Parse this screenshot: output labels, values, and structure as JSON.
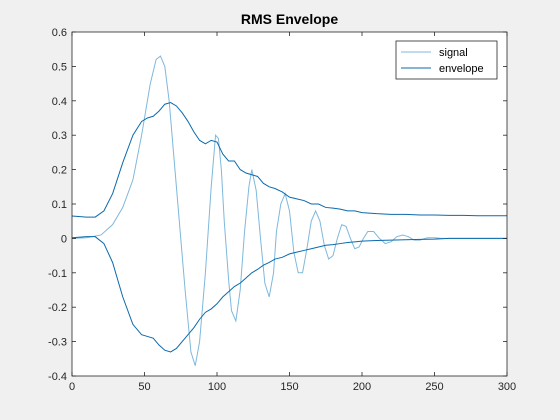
{
  "chart_data": {
    "type": "line",
    "title": "RMS Envelope",
    "xlabel": "",
    "ylabel": "",
    "xlim": [
      0,
      300
    ],
    "ylim": [
      -0.4,
      0.6
    ],
    "xticks": [
      0,
      50,
      100,
      150,
      200,
      250,
      300
    ],
    "yticks": [
      -0.4,
      -0.3,
      -0.2,
      -0.1,
      0,
      0.1,
      0.2,
      0.3,
      0.4,
      0.5,
      0.6
    ],
    "grid": false,
    "legend_position": "top-right",
    "series": [
      {
        "name": "signal",
        "color": "#7eb8dc",
        "x": [
          0,
          10,
          20,
          28,
          35,
          42,
          48,
          54,
          58,
          61,
          64,
          67,
          70,
          74,
          78,
          82,
          85,
          88,
          92,
          96,
          99,
          101,
          103,
          105,
          108,
          110,
          113,
          116,
          119,
          122,
          124,
          127,
          130,
          133,
          136,
          139,
          141,
          144,
          147,
          150,
          153,
          156,
          159,
          162,
          165,
          168,
          171,
          174,
          177,
          180,
          183,
          186,
          189,
          192,
          195,
          198,
          201,
          204,
          208,
          212,
          216,
          220,
          224,
          228,
          232,
          236,
          240,
          245,
          250,
          255,
          260,
          270,
          280,
          290,
          300
        ],
        "values": [
          0,
          0.002,
          0.01,
          0.04,
          0.09,
          0.17,
          0.3,
          0.45,
          0.52,
          0.53,
          0.5,
          0.4,
          0.25,
          0.05,
          -0.15,
          -0.33,
          -0.37,
          -0.3,
          -0.1,
          0.15,
          0.3,
          0.29,
          0.2,
          0.05,
          -0.12,
          -0.21,
          -0.24,
          -0.15,
          0.02,
          0.15,
          0.2,
          0.14,
          0.0,
          -0.13,
          -0.17,
          -0.1,
          0.02,
          0.1,
          0.13,
          0.08,
          -0.04,
          -0.1,
          -0.1,
          -0.03,
          0.05,
          0.08,
          0.05,
          -0.02,
          -0.06,
          -0.05,
          0.0,
          0.04,
          0.035,
          0.0,
          -0.03,
          -0.025,
          0.0,
          0.02,
          0.02,
          0.0,
          -0.015,
          -0.01,
          0.005,
          0.01,
          0.005,
          -0.005,
          -0.005,
          0.002,
          0.002,
          0,
          0,
          0,
          0,
          0,
          0
        ]
      },
      {
        "name": "envelope",
        "color": "#0b6aad",
        "upper": {
          "x": [
            0,
            10,
            16,
            22,
            28,
            35,
            42,
            48,
            52,
            56,
            60,
            64,
            68,
            72,
            76,
            80,
            84,
            88,
            92,
            96,
            100,
            104,
            108,
            112,
            116,
            120,
            124,
            128,
            132,
            136,
            140,
            145,
            150,
            155,
            160,
            165,
            170,
            175,
            180,
            185,
            190,
            195,
            200,
            210,
            220,
            230,
            240,
            250,
            260,
            270,
            280,
            290,
            300
          ],
          "values": [
            0.065,
            0.062,
            0.062,
            0.08,
            0.13,
            0.22,
            0.3,
            0.34,
            0.35,
            0.355,
            0.37,
            0.39,
            0.395,
            0.385,
            0.365,
            0.34,
            0.31,
            0.285,
            0.275,
            0.285,
            0.28,
            0.245,
            0.225,
            0.225,
            0.2,
            0.19,
            0.185,
            0.18,
            0.16,
            0.15,
            0.145,
            0.135,
            0.12,
            0.115,
            0.11,
            0.1,
            0.1,
            0.09,
            0.088,
            0.085,
            0.08,
            0.08,
            0.075,
            0.072,
            0.07,
            0.07,
            0.068,
            0.068,
            0.067,
            0.067,
            0.066,
            0.066,
            0.066
          ]
        },
        "lower": {
          "x": [
            0,
            10,
            16,
            22,
            28,
            35,
            42,
            48,
            52,
            56,
            60,
            64,
            68,
            72,
            76,
            80,
            84,
            88,
            92,
            96,
            100,
            104,
            108,
            112,
            116,
            120,
            124,
            128,
            132,
            136,
            140,
            145,
            150,
            155,
            160,
            165,
            170,
            175,
            180,
            185,
            190,
            195,
            200,
            210,
            220,
            230,
            240,
            250,
            260,
            270,
            280,
            290,
            300
          ],
          "values": [
            0.002,
            0.005,
            0.005,
            -0.015,
            -0.07,
            -0.17,
            -0.25,
            -0.28,
            -0.285,
            -0.29,
            -0.31,
            -0.325,
            -0.33,
            -0.32,
            -0.3,
            -0.28,
            -0.26,
            -0.235,
            -0.215,
            -0.205,
            -0.19,
            -0.17,
            -0.155,
            -0.14,
            -0.13,
            -0.115,
            -0.1,
            -0.09,
            -0.078,
            -0.07,
            -0.06,
            -0.055,
            -0.045,
            -0.04,
            -0.035,
            -0.03,
            -0.025,
            -0.02,
            -0.018,
            -0.015,
            -0.012,
            -0.01,
            -0.008,
            -0.006,
            -0.005,
            -0.004,
            -0.003,
            -0.002,
            0.0,
            0.0,
            0.0,
            0.0,
            0.0
          ]
        }
      }
    ]
  }
}
